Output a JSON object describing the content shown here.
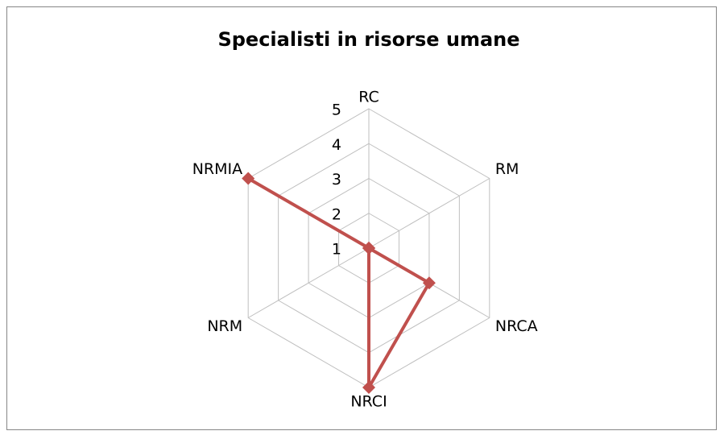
{
  "chart_data": {
    "type": "radar",
    "title": "Specialisti in risorse umane",
    "categories": [
      "RC",
      "RM",
      "NRCA",
      "NRCI",
      "NRM",
      "NRMIA"
    ],
    "series": [
      {
        "color": "#c0504d",
        "values": [
          1,
          1,
          3,
          5,
          1,
          5
        ]
      }
    ],
    "ylim": [
      1,
      5
    ],
    "yticks": [
      1,
      2,
      3,
      4,
      5
    ],
    "grid": true
  }
}
